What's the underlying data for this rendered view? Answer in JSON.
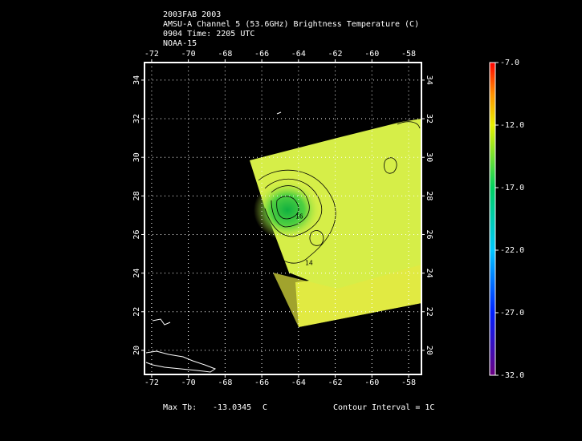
{
  "header": {
    "lines": [
      "2003FAB 2003",
      "AMSU-A Channel 5 (53.6GHz) Brightness Temperature (C)",
      "0904 Time: 2205 UTC",
      "NOAA-15"
    ]
  },
  "map": {
    "xlim": [
      -72.39,
      -57.3
    ],
    "ylim": [
      18.75,
      34.91
    ],
    "xticks": [
      -72,
      -70,
      -68,
      -66,
      -64,
      -62,
      -60,
      -58
    ],
    "yticks": [
      20,
      22,
      24,
      26,
      28,
      30,
      32,
      34
    ],
    "contour_labels": [
      "14",
      "16"
    ]
  },
  "colorbar": {
    "lim": [
      -32,
      -7
    ],
    "ticks": [
      {
        "value": -7,
        "label": "-7.0"
      },
      {
        "value": -12,
        "label": "-12.0"
      },
      {
        "value": -17,
        "label": "-17.0"
      },
      {
        "value": -22,
        "label": "-22.0"
      },
      {
        "value": -27,
        "label": "-27.0"
      },
      {
        "value": -32,
        "label": "-32.0"
      }
    ]
  },
  "footer": {
    "max_label": "Max Tb:",
    "max_value": -13.0345,
    "max_unit": "C",
    "contour_interval": "Contour Interval = 1C"
  }
}
